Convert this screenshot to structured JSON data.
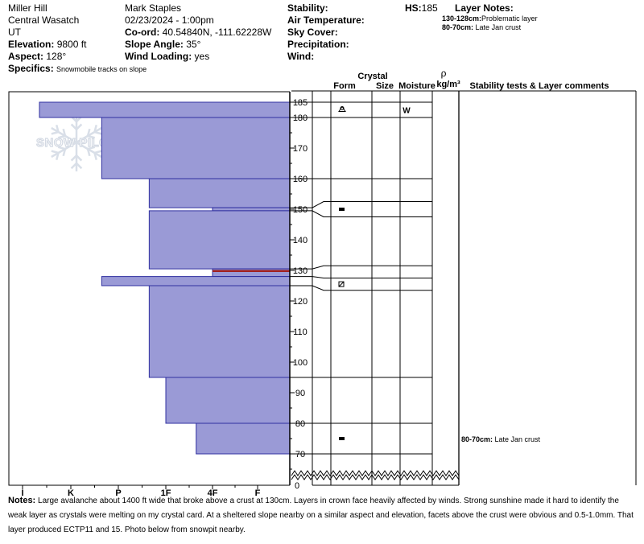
{
  "header": {
    "location_name": "Miller Hill",
    "range": "Central Wasatch",
    "state": "UT",
    "elevation_label": "Elevation:",
    "elevation": "9800 ft",
    "aspect_label": "Aspect:",
    "aspect": "128°",
    "specifics_label": "Specifics:",
    "specifics": "Snowmobile tracks on slope",
    "observer": "Mark Staples",
    "datetime": "02/23/2024 - 1:00pm",
    "coord_label": "Co-ord:",
    "coord": "40.54840N, -111.62228W",
    "slope_label": "Slope Angle:",
    "slope": "35°",
    "wind_loading_label": "Wind Loading:",
    "wind_loading": "yes",
    "stability_label": "Stability:",
    "air_temp_label": "Air Temperature:",
    "sky_cover_label": "Sky Cover:",
    "precip_label": "Precipitation:",
    "wind_label": "Wind:",
    "hs_label": "HS:",
    "hs": "185",
    "layer_notes_label": "Layer Notes:",
    "layer_notes": [
      {
        "range": "130-128cm:",
        "text": "Problematic layer"
      },
      {
        "range": "80-70cm:",
        "text": "Late Jan crust"
      }
    ]
  },
  "logo_text": "SNOW PILOT",
  "columns": {
    "crystal": "Crystal",
    "form": "Form",
    "size": "Size",
    "moisture": "Moisture",
    "rho": "ρ",
    "density": "kg/m³",
    "stability": "Stability tests & Layer comments"
  },
  "chart_data": {
    "type": "bar",
    "orientation": "horizontal",
    "hardness_scale": [
      "I",
      "K",
      "P",
      "1F",
      "4F",
      "F"
    ],
    "hardness_labels_shown": [
      "I",
      "K",
      "P",
      "1F",
      "4F",
      "F"
    ],
    "y_ticks": [
      70,
      80,
      90,
      100,
      110,
      120,
      130,
      140,
      150,
      160,
      170,
      180,
      185
    ],
    "y_extra_label": "0",
    "ylim": [
      67,
      188
    ],
    "layers": [
      {
        "top": 185,
        "bottom": 180,
        "hardness": 0.35
      },
      {
        "top": 180,
        "bottom": 160,
        "hardness": 1.65
      },
      {
        "top": 160,
        "bottom": 150.5,
        "hardness": 2.65
      },
      {
        "top": 150.5,
        "bottom": 149.5,
        "hardness": 4.0
      },
      {
        "top": 149.5,
        "bottom": 130.5,
        "hardness": 2.65
      },
      {
        "top": 130.5,
        "bottom": 128,
        "hardness": 4.0,
        "problematic": true
      },
      {
        "top": 128,
        "bottom": 125,
        "hardness": 1.65
      },
      {
        "top": 125,
        "bottom": 95,
        "hardness": 2.65
      },
      {
        "top": 95,
        "bottom": 80,
        "hardness": 3.0
      },
      {
        "top": 80,
        "bottom": 70,
        "hardness": 3.65
      }
    ],
    "layer_boundaries": [
      185,
      180,
      160,
      150.5,
      149.5,
      130.5,
      128,
      125,
      95,
      80,
      70
    ]
  },
  "crystal_rows": [
    {
      "top": 185,
      "bottom": 180,
      "form_icon": "surface-hoar-icon",
      "moisture": "W"
    },
    {
      "top": 180,
      "bottom": 160
    },
    {
      "top": 160,
      "bottom": 152.5
    },
    {
      "top": 152.5,
      "bottom": 147.5,
      "form_icon": "melt-freeze-crust-icon"
    },
    {
      "top": 147.5,
      "bottom": 131.5
    },
    {
      "top": 131.5,
      "bottom": 127.5
    },
    {
      "top": 127.5,
      "bottom": 123.5,
      "form_icon": "faceted-rounded-icon"
    },
    {
      "top": 123.5,
      "bottom": 95
    },
    {
      "top": 95,
      "bottom": 80
    },
    {
      "top": 80,
      "bottom": 70,
      "form_icon": "melt-freeze-crust-icon"
    }
  ],
  "layer_comments": [
    {
      "depth": 75,
      "label": "80-70cm:",
      "text": "Late Jan crust"
    }
  ],
  "notes": {
    "label": "Notes:",
    "text": "Large avalanche about 1400 ft wide that broke above a crust at 130cm. Layers in crown face heavily affected by winds. Strong sunshine made it hard to identify the weak layer as crystals were melting on my crystal card. At a sheltered slope nearby on a similar aspect and elevation, facets above the crust were obvious and 0.5-1.0mm. That layer produced ECTP11 and 15. Photo below from snowpit nearby."
  },
  "colors": {
    "bar_fill": "#9a9ad6",
    "bar_stroke": "#3030a0",
    "problem_line": "#a02020",
    "logo": "#d9dfe8"
  }
}
